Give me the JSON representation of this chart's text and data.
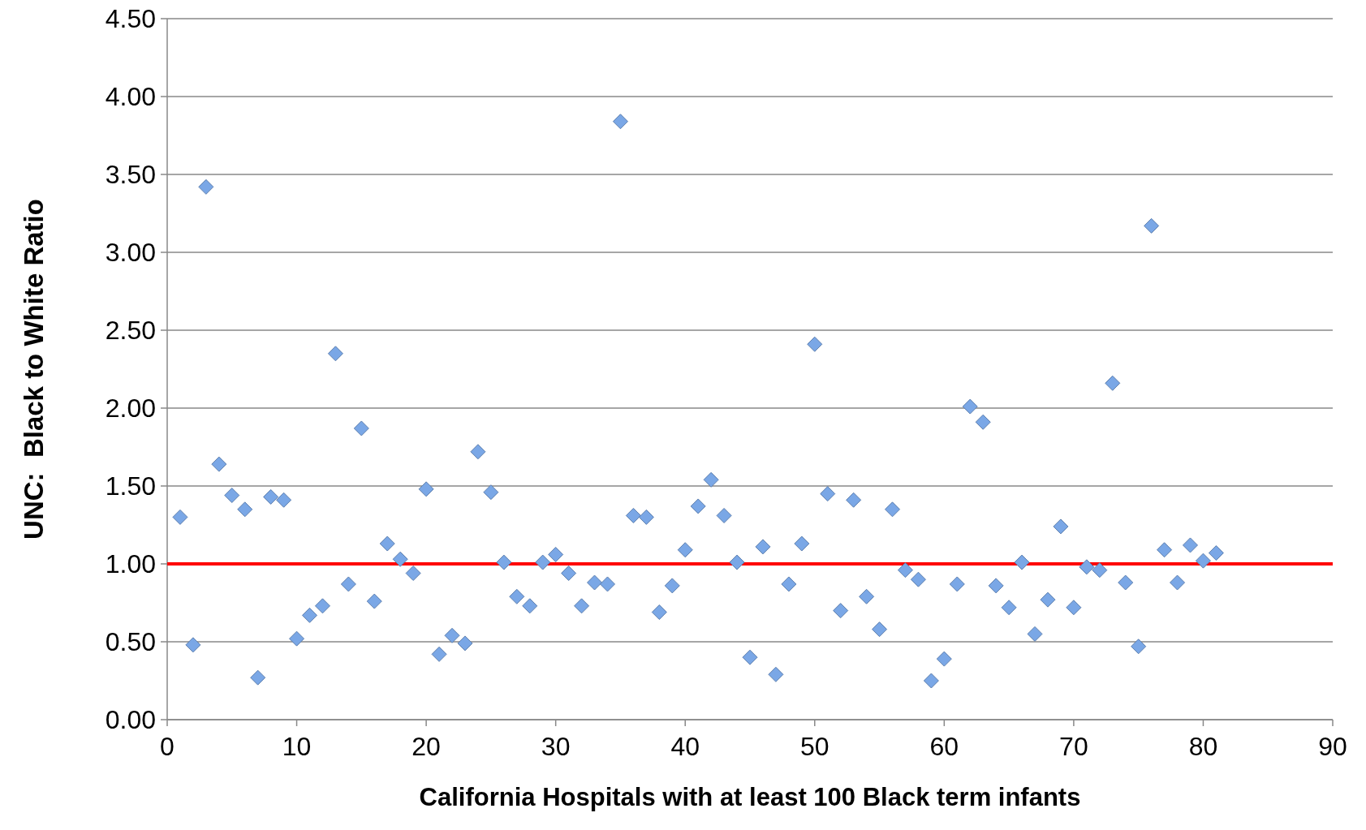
{
  "chart_data": {
    "type": "scatter",
    "xlabel": "California Hospitals with at least 100 Black term infants",
    "ylabel": "UNC:  Black to White Ratio",
    "x": [
      1,
      2,
      3,
      4,
      5,
      6,
      7,
      8,
      9,
      10,
      11,
      12,
      13,
      14,
      15,
      16,
      17,
      18,
      19,
      20,
      21,
      22,
      23,
      24,
      25,
      26,
      27,
      28,
      29,
      30,
      31,
      32,
      33,
      34,
      35,
      36,
      37,
      38,
      39,
      40,
      41,
      42,
      43,
      44,
      45,
      46,
      47,
      48,
      49,
      50,
      51,
      52,
      53,
      54,
      55,
      56,
      57,
      58,
      59,
      60,
      61,
      62,
      63,
      64,
      65,
      66,
      67,
      68,
      69,
      70,
      71,
      72,
      73,
      74,
      75,
      76,
      77,
      78,
      79,
      80,
      81
    ],
    "series": [
      {
        "color": "#7aa7e6",
        "values": [
          1.3,
          0.48,
          3.42,
          1.64,
          1.44,
          1.35,
          0.27,
          1.43,
          1.41,
          0.52,
          0.67,
          0.73,
          2.35,
          0.87,
          1.87,
          0.76,
          1.13,
          1.03,
          0.94,
          1.48,
          0.42,
          0.54,
          0.49,
          1.72,
          1.46,
          1.01,
          0.79,
          0.73,
          1.01,
          1.06,
          0.94,
          0.73,
          0.88,
          0.87,
          3.84,
          1.31,
          1.3,
          0.69,
          0.86,
          1.09,
          1.37,
          1.54,
          1.31,
          1.01,
          0.4,
          1.11,
          0.29,
          0.87,
          1.13,
          2.41,
          1.45,
          0.7,
          1.41,
          0.79,
          0.58,
          1.35,
          0.96,
          0.9,
          0.25,
          0.39,
          0.87,
          2.01,
          1.91,
          0.86,
          0.72,
          1.01,
          0.55,
          0.77,
          1.24,
          0.72,
          0.98,
          0.96,
          2.16,
          0.88,
          0.47,
          3.17,
          1.09,
          0.88,
          1.12,
          1.02,
          1.07
        ]
      }
    ],
    "xlim": [
      0,
      90
    ],
    "xticks": [
      0,
      10,
      20,
      30,
      40,
      50,
      60,
      70,
      80,
      90
    ],
    "ylim": [
      0,
      4.5
    ],
    "yticks": [
      {
        "value": 0,
        "label": "0.00"
      },
      {
        "value": 0.5,
        "label": "0.50"
      },
      {
        "value": 1,
        "label": "1.00"
      },
      {
        "value": 1.5,
        "label": "1.50"
      },
      {
        "value": 2,
        "label": "2.00"
      },
      {
        "value": 2.5,
        "label": "2.50"
      },
      {
        "value": 3,
        "label": "3.00"
      },
      {
        "value": 3.5,
        "label": "3.50"
      },
      {
        "value": 4,
        "label": "4.00"
      },
      {
        "value": 4.5,
        "label": "4.50"
      }
    ],
    "grid": "y",
    "marker": "diamond",
    "ref_lines": [
      {
        "axis": "y",
        "value": 1,
        "color": "#ff0000",
        "line_style": "solid"
      }
    ]
  }
}
